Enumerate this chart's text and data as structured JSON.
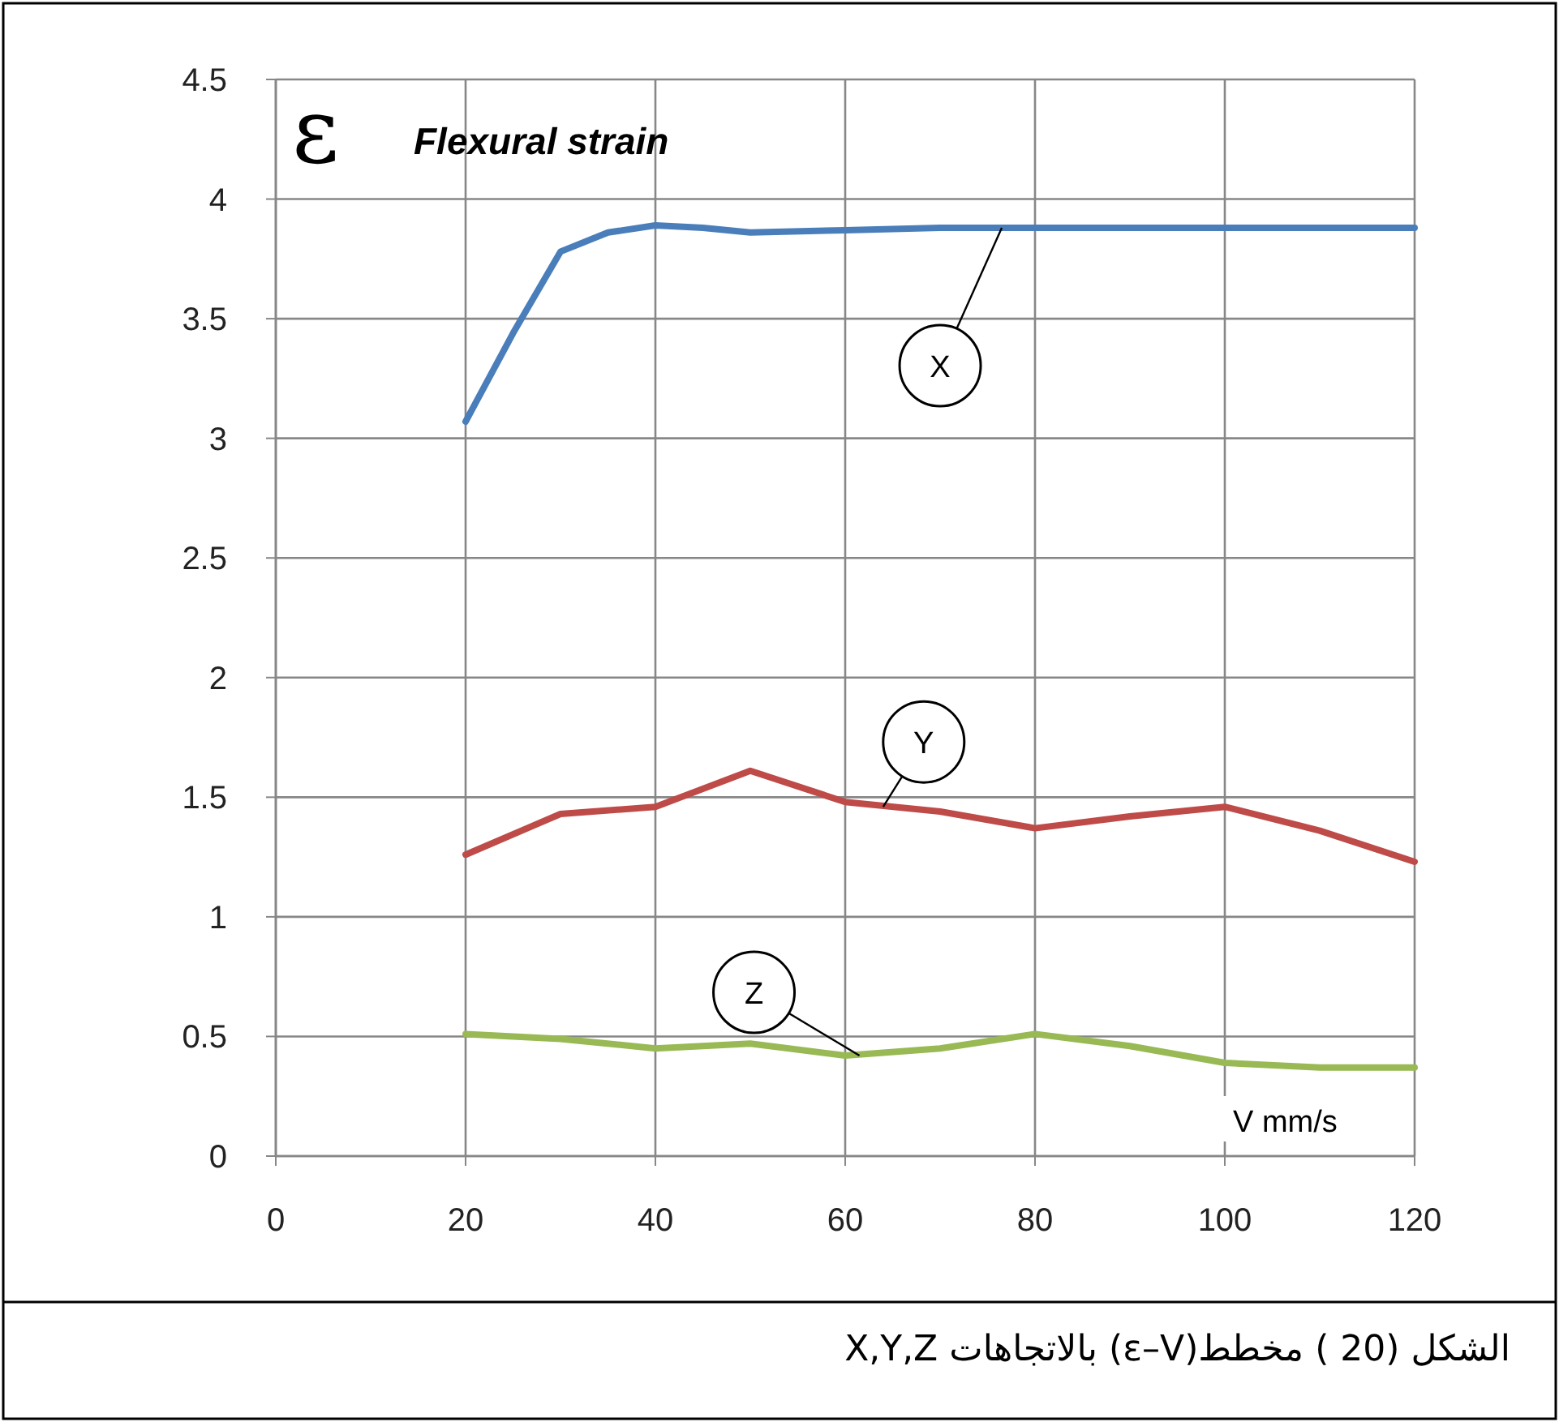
{
  "chart_data": {
    "type": "line",
    "title": "Flexural strain",
    "ylabel": "ε",
    "xlabel": "V  mm/s",
    "series": [
      {
        "color": "#4a7ebb",
        "x": [
          20,
          25,
          30,
          35,
          40,
          45,
          50,
          60,
          70,
          80,
          90,
          100,
          110,
          120
        ],
        "values": [
          3.07,
          3.44,
          3.78,
          3.86,
          3.89,
          3.88,
          3.86,
          3.87,
          3.88,
          3.88,
          3.88,
          3.88,
          3.88,
          3.88
        ]
      },
      {
        "color": "#be4b48",
        "x": [
          20,
          30,
          40,
          50,
          60,
          70,
          80,
          90,
          100,
          110,
          120
        ],
        "values": [
          1.26,
          1.43,
          1.46,
          1.61,
          1.48,
          1.44,
          1.37,
          1.42,
          1.46,
          1.36,
          1.23
        ]
      },
      {
        "color": "#98b954",
        "x": [
          20,
          30,
          40,
          50,
          60,
          70,
          80,
          90,
          100,
          110,
          120
        ],
        "values": [
          0.51,
          0.49,
          0.45,
          0.47,
          0.42,
          0.45,
          0.51,
          0.46,
          0.39,
          0.37,
          0.37
        ]
      }
    ],
    "xlim": [
      0,
      120
    ],
    "xticks": [
      0,
      20,
      40,
      60,
      80,
      100,
      120
    ],
    "ylim": [
      0,
      4.5
    ],
    "yticks": [
      0,
      0.5,
      1,
      1.5,
      2,
      2.5,
      3,
      3.5,
      4,
      4.5
    ],
    "grid": true,
    "line_style": "solid",
    "annotations": [
      {
        "text": "X",
        "x": 76.5,
        "y": 3.88
      },
      {
        "text": "Y",
        "x": 64,
        "y": 1.46
      },
      {
        "text": "Z",
        "x": 61.5,
        "y": 0.42
      },
      "الشكل (20 ) مخطط(ε–V) بالاتجاهات  X,Y,Z"
    ]
  }
}
